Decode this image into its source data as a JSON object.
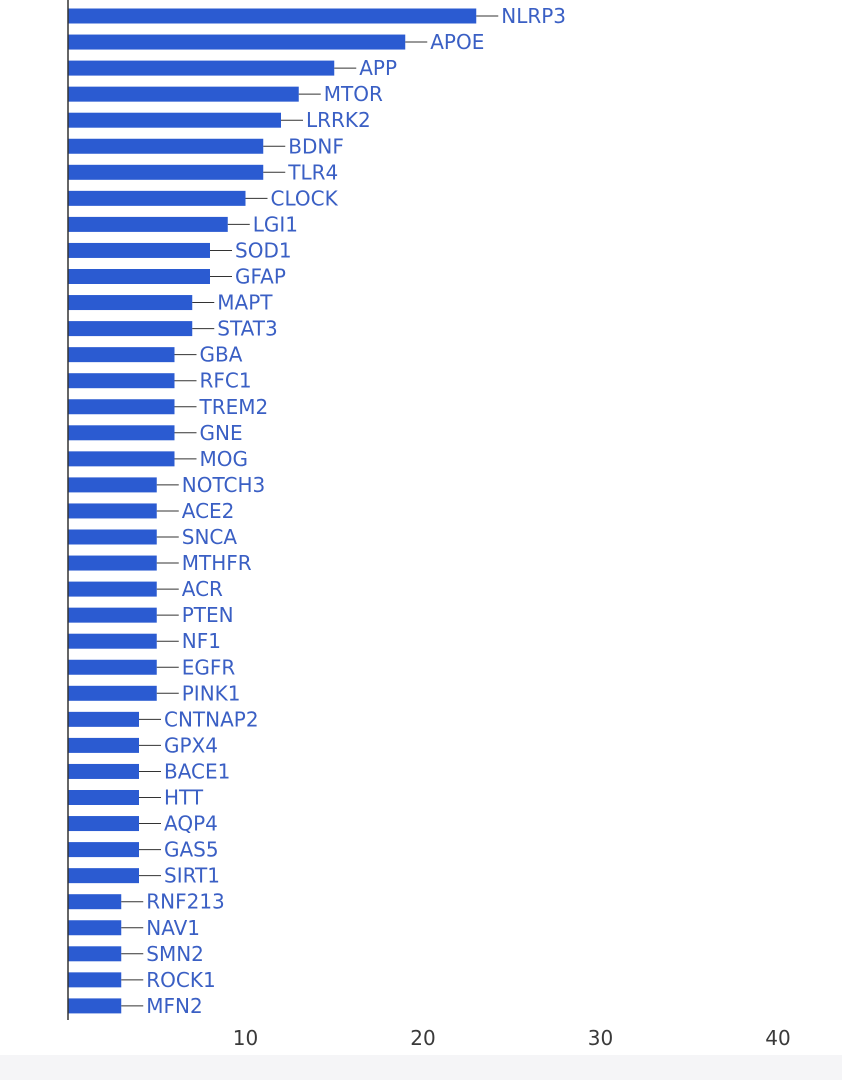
{
  "chart_data": {
    "type": "bar",
    "orientation": "horizontal",
    "categories": [
      "NLRP3",
      "APOE",
      "APP",
      "MTOR",
      "LRRK2",
      "BDNF",
      "TLR4",
      "CLOCK",
      "LGI1",
      "SOD1",
      "GFAP",
      "MAPT",
      "STAT3",
      "GBA",
      "RFC1",
      "TREM2",
      "GNE",
      "MOG",
      "NOTCH3",
      "ACE2",
      "SNCA",
      "MTHFR",
      "ACR",
      "PTEN",
      "NF1",
      "EGFR",
      "PINK1",
      "CNTNAP2",
      "GPX4",
      "BACE1",
      "HTT",
      "AQP4",
      "GAS5",
      "SIRT1",
      "RNF213",
      "NAV1",
      "SMN2",
      "ROCK1",
      "MFN2"
    ],
    "values": [
      23,
      19,
      15,
      13,
      12,
      11,
      11,
      10,
      9,
      8,
      8,
      7,
      7,
      6,
      6,
      6,
      6,
      6,
      5,
      5,
      5,
      5,
      5,
      5,
      5,
      5,
      5,
      4,
      4,
      4,
      4,
      4,
      4,
      4,
      3,
      3,
      3,
      3,
      3
    ],
    "xticks": [
      10,
      20,
      30,
      40
    ],
    "xlim": [
      0,
      40
    ],
    "bar_color": "#2b5bd1",
    "label_color": "#3a5fc4",
    "grid": false,
    "title": "",
    "xlabel": "",
    "ylabel": ""
  }
}
